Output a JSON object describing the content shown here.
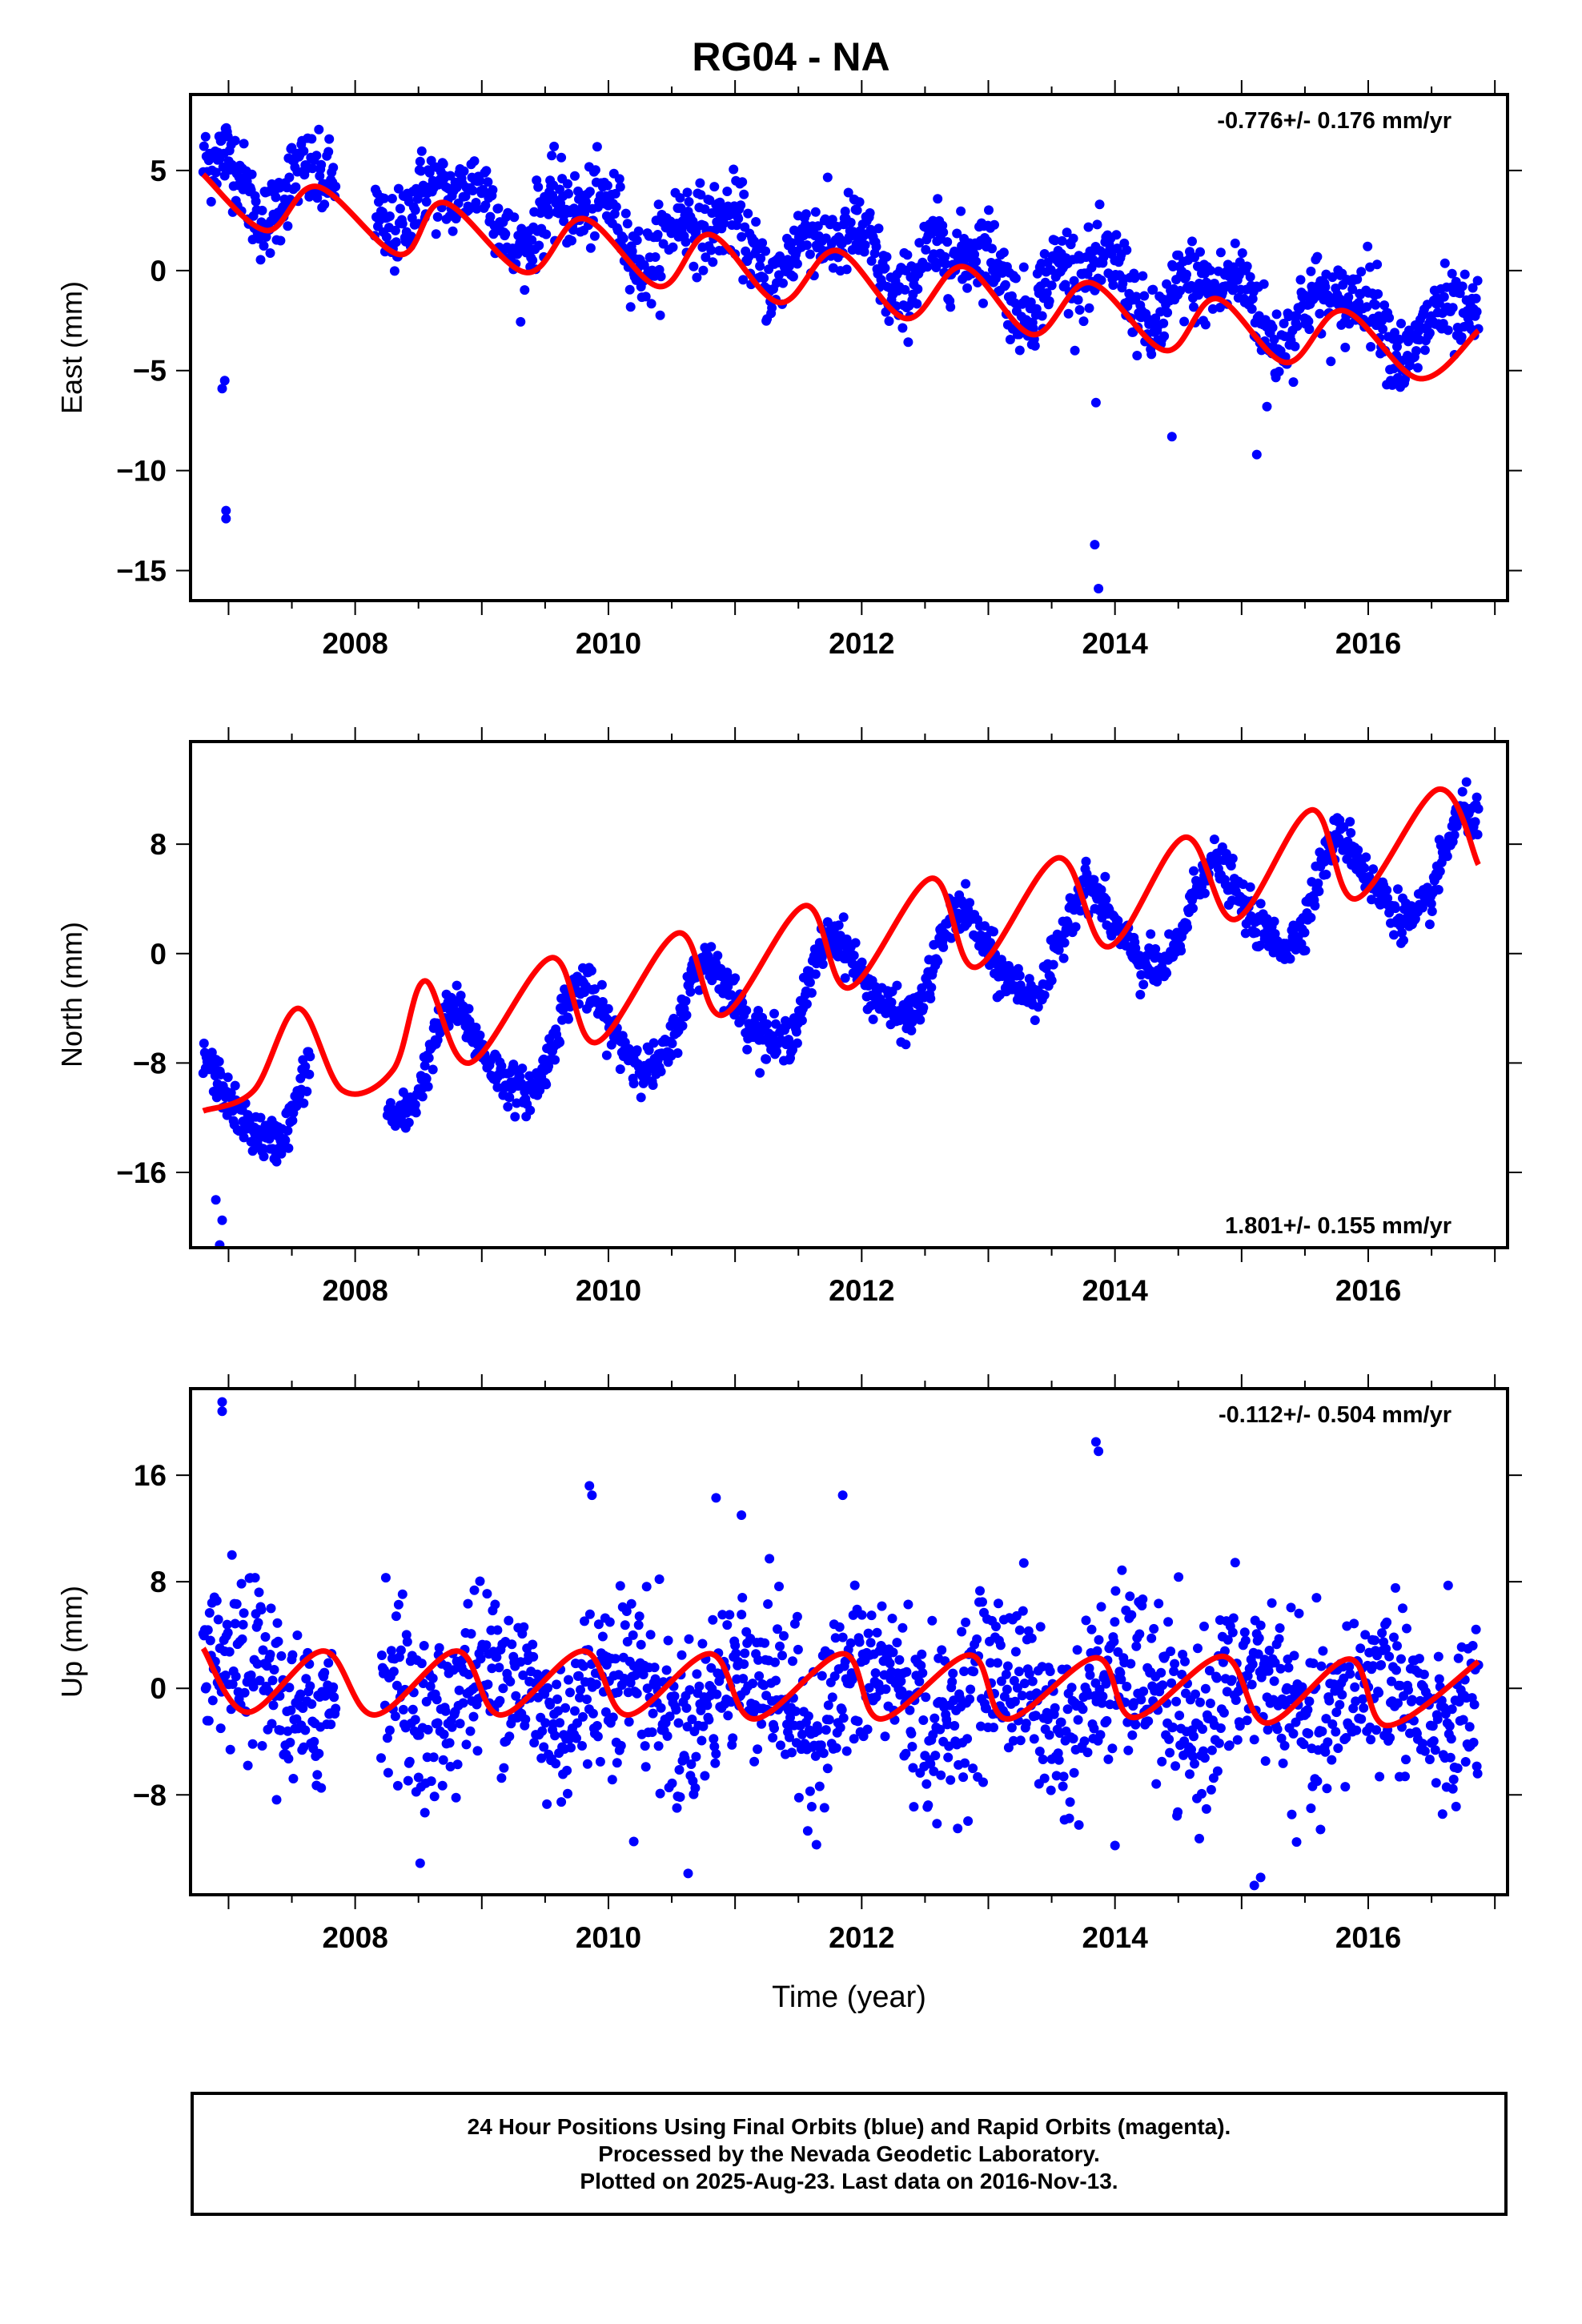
{
  "title": "RG04 - NA",
  "footer": {
    "line1": "24 Hour Positions Using Final Orbits (blue) and Rapid Orbits (magenta).",
    "line2": "Processed by the Nevada Geodetic Laboratory.",
    "line3": "Plotted on 2025-Aug-23. Last data on 2016-Nov-13."
  },
  "colors": {
    "points": "#0000ff",
    "fit": "#ff0000",
    "axis": "#000000"
  },
  "chart_data": [
    {
      "type": "scatter",
      "ylabel": "East (mm)",
      "xlabel": "",
      "rate_label": "-0.776+/- 0.176 mm/yr",
      "rate_position": "top-right",
      "xlim": [
        2006.7,
        2017.1
      ],
      "ylim": [
        -16.5,
        8.8
      ],
      "xticks": [
        2008,
        2010,
        2012,
        2014,
        2016
      ],
      "yticks": [
        5,
        0,
        -5,
        -10,
        -15
      ],
      "yticklabels": [
        "5",
        "0",
        "−5",
        "−10",
        "−15"
      ],
      "start": 2006.8,
      "end": 2016.87,
      "gap": [
        2007.85,
        2008.15
      ],
      "model": {
        "offset": 4.8,
        "rate": -0.776,
        "ampAnnual": 1.2,
        "phaseAnnual": 0.55,
        "ampSemi": 0.8,
        "phaseSemi": 0.4,
        "sigma": 1.0
      },
      "fit_curve": [
        [
          2006.8,
          4.8
        ],
        [
          2007.3,
          2.0
        ],
        [
          2007.7,
          4.2
        ],
        [
          2008.35,
          0.8
        ],
        [
          2008.7,
          3.4
        ],
        [
          2009.35,
          -0.1
        ],
        [
          2009.8,
          2.6
        ],
        [
          2010.4,
          -0.8
        ],
        [
          2010.8,
          1.8
        ],
        [
          2011.35,
          -1.6
        ],
        [
          2011.8,
          1.0
        ],
        [
          2012.35,
          -2.4
        ],
        [
          2012.8,
          0.2
        ],
        [
          2013.35,
          -3.2
        ],
        [
          2013.8,
          -0.6
        ],
        [
          2014.4,
          -4.0
        ],
        [
          2014.8,
          -1.4
        ],
        [
          2015.35,
          -4.6
        ],
        [
          2015.8,
          -2.0
        ],
        [
          2016.4,
          -5.4
        ],
        [
          2016.87,
          -3.0
        ]
      ],
      "outliers": [
        [
          2006.98,
          -12.0
        ],
        [
          2006.98,
          -12.4
        ],
        [
          2006.97,
          -5.5
        ],
        [
          2006.95,
          -5.9
        ],
        [
          2013.84,
          -13.7
        ],
        [
          2013.87,
          -15.9
        ],
        [
          2014.45,
          -8.3
        ],
        [
          2015.12,
          -9.2
        ],
        [
          2013.85,
          -6.6
        ],
        [
          2015.2,
          -6.8
        ]
      ]
    },
    {
      "type": "scatter",
      "ylabel": "North (mm)",
      "xlabel": "",
      "rate_label": "1.801+/- 0.155 mm/yr",
      "rate_position": "bottom-right",
      "xlim": [
        2006.7,
        2017.1
      ],
      "ylim": [
        -21.5,
        15.5
      ],
      "xticks": [
        2008,
        2010,
        2012,
        2014,
        2016
      ],
      "yticks": [
        8,
        0,
        -8,
        -16
      ],
      "yticklabels": [
        "8",
        "0",
        "−8",
        "−16"
      ],
      "start": 2006.8,
      "end": 2016.87,
      "gap": [
        2007.65,
        2008.25
      ],
      "model": {
        "offset": -11.5,
        "rate": 1.801,
        "ampAnnual": 3.4,
        "phaseAnnual": 0.55,
        "ampSemi": 0.6,
        "phaseSemi": 0.1,
        "sigma": 0.8
      },
      "fit_curve": [
        [
          2006.8,
          -11.5
        ],
        [
          2007.2,
          -10.0
        ],
        [
          2007.55,
          -4.0
        ],
        [
          2007.9,
          -10.0
        ],
        [
          2008.3,
          -8.5
        ],
        [
          2008.55,
          -2.0
        ],
        [
          2008.9,
          -8.0
        ],
        [
          2009.55,
          -0.3
        ],
        [
          2009.9,
          -6.5
        ],
        [
          2010.55,
          1.5
        ],
        [
          2010.9,
          -4.5
        ],
        [
          2011.55,
          3.5
        ],
        [
          2011.9,
          -2.5
        ],
        [
          2012.55,
          5.5
        ],
        [
          2012.9,
          -1.0
        ],
        [
          2013.55,
          7.0
        ],
        [
          2013.95,
          0.5
        ],
        [
          2014.55,
          8.5
        ],
        [
          2014.95,
          2.5
        ],
        [
          2015.55,
          10.5
        ],
        [
          2015.9,
          4.0
        ],
        [
          2016.55,
          12.0
        ],
        [
          2016.87,
          6.5
        ]
      ],
      "outliers": [
        [
          2006.95,
          -19.5
        ],
        [
          2006.93,
          -21.3
        ],
        [
          2006.9,
          -18.0
        ],
        [
          2010.2,
          -9.5
        ],
        [
          2013.07,
          -3.2
        ],
        [
          2014.2,
          -3.0
        ]
      ]
    },
    {
      "type": "scatter",
      "ylabel": "Up (mm)",
      "xlabel": "Time (year)",
      "rate_label": "-0.112+/- 0.504 mm/yr",
      "rate_position": "top-right",
      "xlim": [
        2006.7,
        2017.1
      ],
      "ylim": [
        -15.5,
        22.5
      ],
      "xticks": [
        2008,
        2010,
        2012,
        2014,
        2016
      ],
      "yticks": [
        16,
        8,
        0,
        -8
      ],
      "yticklabels": [
        "16",
        "8",
        "0",
        "−8"
      ],
      "start": 2006.8,
      "end": 2016.87,
      "gap": [
        2007.85,
        2008.2
      ],
      "model": {
        "offset": 0.0,
        "rate": -0.112,
        "ampAnnual": 2.3,
        "phaseAnnual": 0.85,
        "ampSemi": 0.5,
        "phaseSemi": 0.2,
        "sigma": 3.2
      },
      "fit_curve": [
        [
          2006.8,
          3.0
        ],
        [
          2007.15,
          -1.8
        ],
        [
          2007.75,
          2.8
        ],
        [
          2008.15,
          -2.0
        ],
        [
          2008.8,
          2.8
        ],
        [
          2009.15,
          -2.0
        ],
        [
          2009.8,
          2.8
        ],
        [
          2010.15,
          -2.0
        ],
        [
          2010.8,
          2.6
        ],
        [
          2011.15,
          -2.3
        ],
        [
          2011.85,
          2.6
        ],
        [
          2012.15,
          -2.3
        ],
        [
          2012.85,
          2.5
        ],
        [
          2013.15,
          -2.3
        ],
        [
          2013.85,
          2.3
        ],
        [
          2014.15,
          -2.2
        ],
        [
          2014.85,
          2.4
        ],
        [
          2015.2,
          -2.6
        ],
        [
          2015.85,
          2.2
        ],
        [
          2016.15,
          -2.8
        ],
        [
          2016.87,
          2.0
        ]
      ],
      "outliers": [
        [
          2006.95,
          21.5
        ],
        [
          2006.95,
          20.8
        ],
        [
          2013.85,
          18.5
        ],
        [
          2013.87,
          17.8
        ],
        [
          2009.85,
          15.2
        ],
        [
          2009.87,
          14.5
        ],
        [
          2010.85,
          14.3
        ],
        [
          2011.85,
          14.5
        ],
        [
          2011.05,
          13.0
        ],
        [
          2015.1,
          -14.8
        ],
        [
          2015.15,
          -14.2
        ],
        [
          2010.2,
          -11.5
        ],
        [
          2014.0,
          -11.8
        ]
      ]
    }
  ]
}
